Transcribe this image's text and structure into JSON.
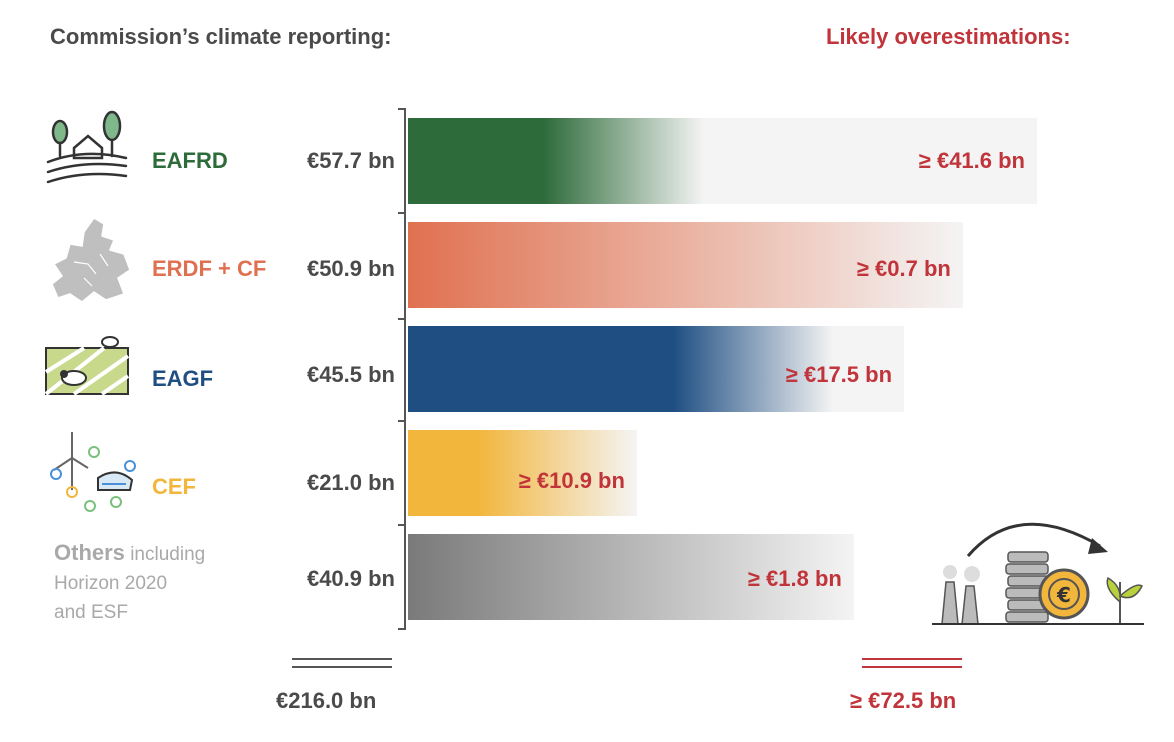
{
  "header": {
    "left": "Commission’s climate reporting:",
    "right": "Likely overestimations:"
  },
  "colors": {
    "eafrd": "#2e6b3a",
    "erdf": "#e07150",
    "eagf": "#1e4e82",
    "cef": "#f2b63c",
    "others": "#7a7a7a",
    "over_text": "#c0343a"
  },
  "icons": [
    "farm-icon",
    "europe-map-icon",
    "cow-field-icon",
    "wind-turbine-train-icon",
    "factory-coins-plant-icon"
  ],
  "others_label": {
    "bold": "Others",
    "rest": " including",
    "line2": "Horizon 2020",
    "line3": "and ESF"
  },
  "chart_data": {
    "type": "bar",
    "orientation": "horizontal",
    "unit": "€ bn",
    "categories": [
      "EAFRD",
      "ERDF + CF",
      "EAGF",
      "CEF",
      "Others including Horizon 2020 and ESF"
    ],
    "series": [
      {
        "name": "Commission’s climate reporting",
        "values": [
          57.7,
          50.9,
          45.5,
          21.0,
          40.9
        ]
      },
      {
        "name": "Likely overestimations",
        "values": [
          41.6,
          0.7,
          17.5,
          10.9,
          1.8
        ]
      }
    ],
    "reported_labels": [
      "€57.7 bn",
      "€50.9 bn",
      "€45.5 bn",
      "€21.0 bn",
      "€40.9 bn"
    ],
    "overestimation_labels": [
      "≥ €41.6 bn",
      "≥ €0.7 bn",
      "≥ €17.5 bn",
      "≥ €10.9 bn",
      "≥ €1.8 bn"
    ],
    "totals": {
      "reported": "€216.0 bn",
      "overestimation": "≥ €72.5 bn"
    }
  }
}
